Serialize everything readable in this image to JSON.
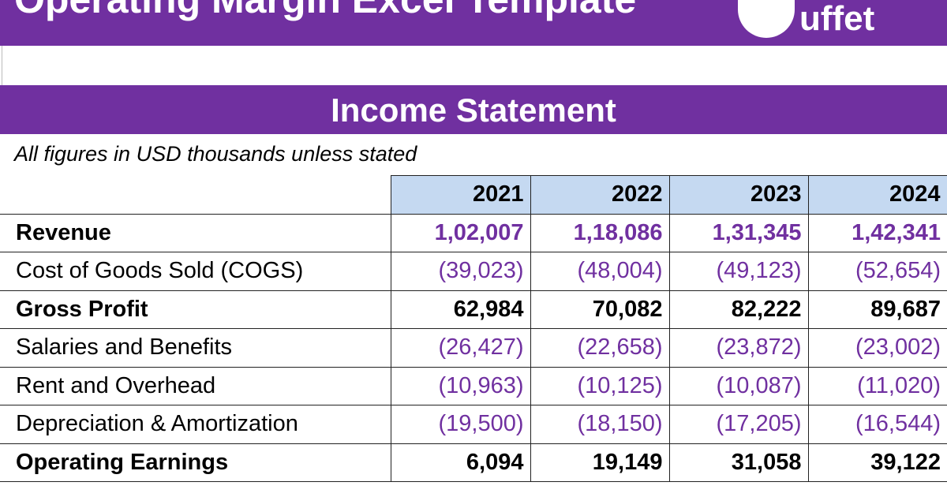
{
  "header": {
    "title": "Operating Margin Excel Template",
    "logo": "uffet"
  },
  "section_title": "Income Statement",
  "note": "All figures in USD thousands unless stated",
  "table": {
    "columns": [
      "2021",
      "2022",
      "2023",
      "2024"
    ],
    "rows": [
      {
        "label": "Revenue",
        "bold": true,
        "values": [
          "1,02,007",
          "1,18,086",
          "1,31,345",
          "1,42,341"
        ]
      },
      {
        "label": "Cost of Goods Sold (COGS)",
        "bold": false,
        "values": [
          "(39,023)",
          "(48,004)",
          "(49,123)",
          "(52,654)"
        ]
      },
      {
        "label": "Gross Profit",
        "bold": true,
        "values": [
          "62,984",
          "70,082",
          "82,222",
          "89,687"
        ]
      },
      {
        "label": "Salaries and Benefits",
        "bold": false,
        "values": [
          "(26,427)",
          "(22,658)",
          "(23,872)",
          "(23,002)"
        ]
      },
      {
        "label": "Rent and Overhead",
        "bold": false,
        "values": [
          "(10,963)",
          "(10,125)",
          "(10,087)",
          "(11,020)"
        ]
      },
      {
        "label": "Depreciation & Amortization",
        "bold": false,
        "values": [
          "(19,500)",
          "(18,150)",
          "(17,205)",
          "(16,544)"
        ]
      },
      {
        "label": "Operating Earnings",
        "bold": true,
        "values": [
          "6,094",
          "19,149",
          "31,058",
          "39,122"
        ]
      }
    ]
  }
}
